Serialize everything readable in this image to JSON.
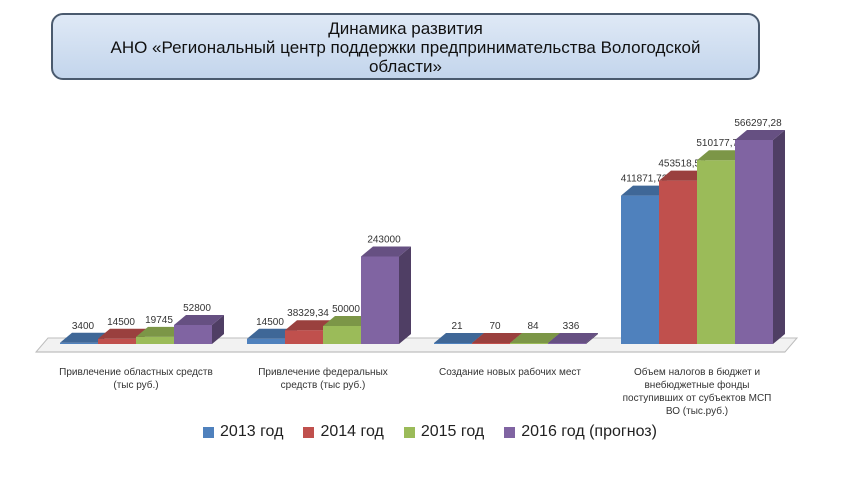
{
  "title": {
    "line1": "Динамика развития",
    "line2": "АНО «Региональный центр поддержки предпринимательства Вологодской",
    "line3": "области»"
  },
  "chart_data": {
    "type": "bar",
    "categories": [
      [
        "Привлечение областных средств",
        "(тыс руб.)"
      ],
      [
        "Привлечение федеральных",
        "средств (тыс руб.)"
      ],
      [
        "Создание новых рабочих мест"
      ],
      [
        "Объем налогов в бюджет и",
        "внебюджетные фонды",
        "поступивших от субъектов МСП",
        "ВО (тыс.руб.)"
      ]
    ],
    "series": [
      {
        "name": "2013 год",
        "color": "#4f81bd",
        "values": [
          3400,
          14500,
          21,
          411871.72
        ],
        "labels": [
          "3400",
          "14500",
          "21",
          "411871,72"
        ]
      },
      {
        "name": "2014 год",
        "color": "#c0504d",
        "values": [
          14500,
          38329.34,
          70,
          453518.57
        ],
        "labels": [
          "14500",
          "38329,34",
          "70",
          "453518,57"
        ]
      },
      {
        "name": "2015 год",
        "color": "#9bbb59",
        "values": [
          19745,
          50000,
          84,
          510177.73
        ],
        "labels": [
          "19745",
          "50000",
          "84",
          "510177,73"
        ]
      },
      {
        "name": "2016 год (прогноз)",
        "color": "#8064a2",
        "values": [
          52800,
          243000,
          336,
          566297.28
        ],
        "labels": [
          "52800",
          "243000",
          "336",
          "566297,28"
        ]
      }
    ],
    "legend_position": "bottom",
    "grid": false
  }
}
